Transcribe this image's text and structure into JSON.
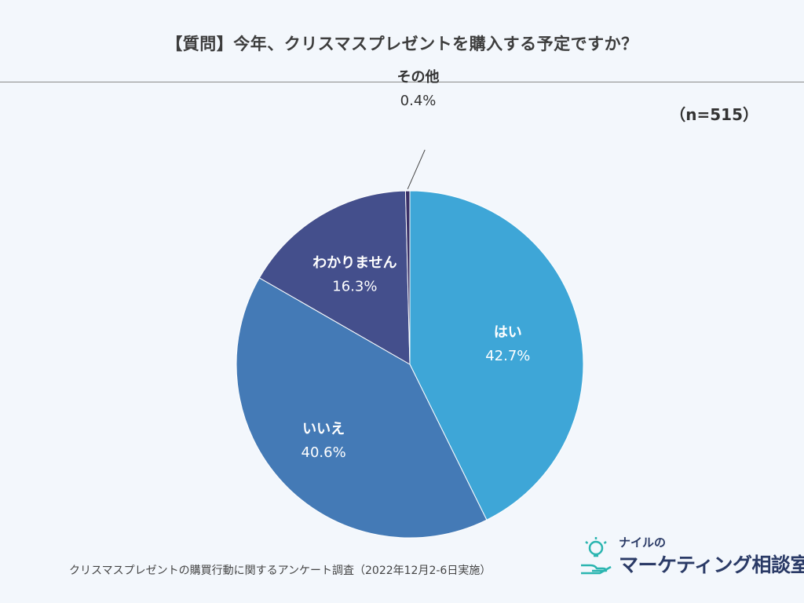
{
  "header": {
    "title": "【質問】今年、クリスマスプレゼントを購入する予定ですか？",
    "sample_size": "（n=515）"
  },
  "chart_data": {
    "type": "pie",
    "title": "【質問】今年、クリスマスプレゼントを購入する予定ですか？",
    "start_angle_deg": 0,
    "direction": "clockwise",
    "slices": [
      {
        "name": "はい",
        "value": 42.7,
        "value_label": "42.7%",
        "color": "#3ea6d7",
        "text_color": "#ffffff"
      },
      {
        "name": "いいえ",
        "value": 40.6,
        "value_label": "40.6%",
        "color": "#447ab6",
        "text_color": "#ffffff"
      },
      {
        "name": "わかりません",
        "value": 16.3,
        "value_label": "16.3%",
        "color": "#444f8c",
        "text_color": "#ffffff"
      },
      {
        "name": "その他",
        "value": 0.4,
        "value_label": "0.4%",
        "color": "#3a2f66",
        "text_color": "#333333"
      }
    ]
  },
  "footer": {
    "source": "クリスマスプレゼントの購買行動に関するアンケート調査（2022年12月2-6日実施）"
  },
  "logo": {
    "small_text": "ナイルの",
    "main_text": "マーケティング",
    "suffix_text": "相談室",
    "icon": "lightbulb-hand-icon",
    "color": "#2a3a66",
    "accent": "#2bb5b0"
  }
}
